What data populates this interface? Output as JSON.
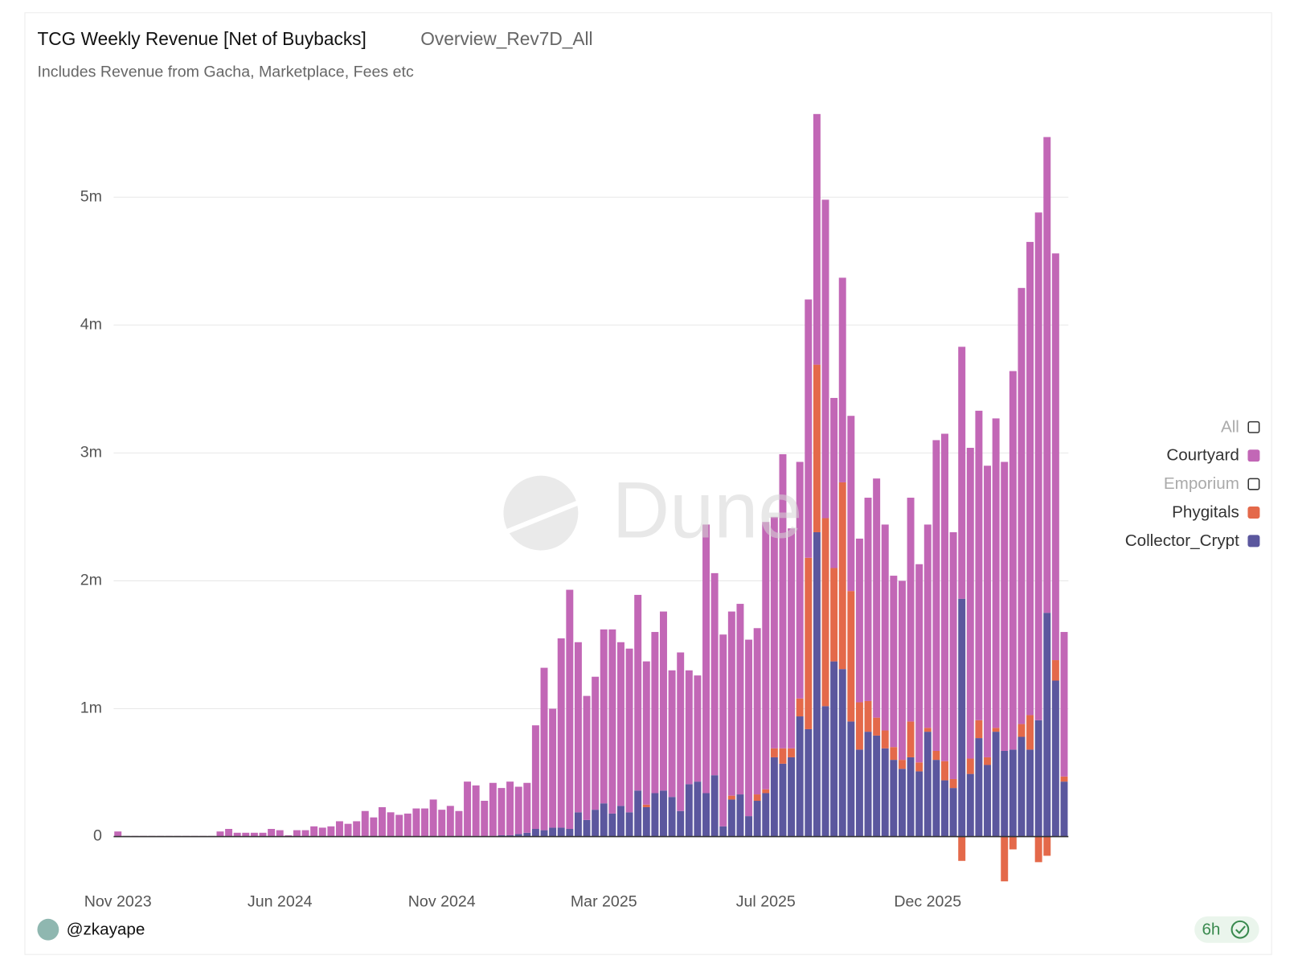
{
  "chart_data": {
    "type": "stacked_bar",
    "title": "TCG Weekly Revenue [Net of Buybacks]",
    "query_name": "Overview_Rev7D_All",
    "subtitle": "Includes Revenue from Gacha, Marketplace, Fees etc",
    "author": "@zkayape",
    "freshness": "6h",
    "watermark": "Dune",
    "categories": [
      "Nov 2023",
      null,
      null,
      null,
      null,
      null,
      null,
      null,
      null,
      null,
      null,
      null,
      null,
      null,
      null,
      null,
      null,
      null,
      null,
      "Jun 2024",
      null,
      null,
      null,
      null,
      null,
      null,
      null,
      null,
      null,
      null,
      null,
      null,
      null,
      null,
      null,
      null,
      null,
      null,
      "Nov 2024",
      null,
      null,
      null,
      null,
      null,
      null,
      null,
      null,
      null,
      null,
      null,
      null,
      null,
      null,
      null,
      null,
      null,
      null,
      "Mar 2025",
      null,
      null,
      null,
      null,
      null,
      null,
      null,
      null,
      null,
      null,
      null,
      null,
      null,
      null,
      null,
      null,
      null,
      null,
      "Jul 2025",
      null,
      null,
      null,
      null,
      null,
      null,
      null,
      null,
      null,
      null,
      null,
      null,
      null,
      null,
      null,
      null,
      null,
      null,
      "Dec 2025",
      null,
      null,
      null,
      null,
      null,
      null,
      null,
      null,
      null,
      null,
      null,
      null,
      null,
      null,
      null,
      null
    ],
    "series": [
      {
        "name": "All",
        "visible": false
      },
      {
        "name": "Courtyard",
        "color": "#c267b6",
        "visible": true,
        "values": [
          0.04,
          0.005,
          0.005,
          0.005,
          0.005,
          0.005,
          0.005,
          0.005,
          0.005,
          0.005,
          0.005,
          0.005,
          0.04,
          0.06,
          0.03,
          0.03,
          0.03,
          0.03,
          0.06,
          0.05,
          0.01,
          0.05,
          0.05,
          0.08,
          0.07,
          0.08,
          0.12,
          0.1,
          0.12,
          0.2,
          0.15,
          0.23,
          0.19,
          0.17,
          0.18,
          0.22,
          0.22,
          0.29,
          0.21,
          0.24,
          0.2,
          0.43,
          0.395,
          0.28,
          0.415,
          0.37,
          0.42,
          0.37,
          0.39,
          0.81,
          1.27,
          0.93,
          1.48,
          1.87,
          1.33,
          0.97,
          1.04,
          1.36,
          1.44,
          1.28,
          1.28,
          1.53,
          1.12,
          1.26,
          1.4,
          0.99,
          1.24,
          0.89,
          0.83,
          2.1,
          1.58,
          1.5,
          1.44,
          1.49,
          1.38,
          1.3,
          2.09,
          1.81,
          2.3,
          1.72,
          1.85,
          2.02,
          1.96,
          2.49,
          1.33,
          1.6,
          1.37,
          1.28,
          1.59,
          1.87,
          1.61,
          1.34,
          1.4,
          1.75,
          1.55,
          1.59,
          2.43,
          2.56,
          1.93,
          1.97,
          2.43,
          2.42,
          2.28,
          2.42,
          2.26,
          2.96,
          3.41,
          3.7,
          3.97,
          3.72,
          3.18,
          1.13
        ]
      },
      {
        "name": "Emporium",
        "visible": false
      },
      {
        "name": "Phygitals",
        "color": "#e4694a",
        "visible": true,
        "values": [
          0,
          0,
          0,
          0,
          0,
          0,
          0,
          0,
          0,
          0,
          0,
          0,
          0,
          0,
          0,
          0,
          0,
          0,
          0,
          0,
          0,
          0,
          0,
          0,
          0,
          0,
          0,
          0,
          0,
          0,
          0,
          0,
          0,
          0,
          0,
          0,
          0,
          0,
          0,
          0,
          0,
          0,
          0,
          0,
          0,
          0,
          0,
          0,
          0,
          0,
          0,
          0,
          0,
          0,
          0,
          0,
          0,
          0,
          0,
          0,
          0,
          0,
          0.02,
          0,
          0,
          0,
          0,
          0,
          0,
          0,
          0,
          0,
          0.03,
          0,
          0,
          0.05,
          0.03,
          0.07,
          0.12,
          0.07,
          0.14,
          1.34,
          1.31,
          1.47,
          0.73,
          1.46,
          1.02,
          0.37,
          0.24,
          0.14,
          0.14,
          0.1,
          0.07,
          0.28,
          0.07,
          0.03,
          0.07,
          0.15,
          0.07,
          -0.19,
          0.12,
          0.14,
          0.06,
          0.03,
          -0.35,
          -0.1,
          0.1,
          0.27,
          -0.2,
          -0.15,
          0.16,
          0.04
        ]
      },
      {
        "name": "Collector_Crypt",
        "color": "#5b579e",
        "visible": true,
        "values": [
          0,
          0,
          0,
          0,
          0,
          0,
          0,
          0,
          0,
          0,
          0,
          0,
          0,
          0,
          0,
          0,
          0,
          0,
          0,
          0,
          0,
          0,
          0,
          0,
          0,
          0,
          0,
          0,
          0,
          0,
          0,
          0,
          0,
          0,
          0,
          0,
          0,
          0,
          0,
          0,
          0,
          0,
          0.005,
          0,
          0.005,
          0.01,
          0.01,
          0.02,
          0.03,
          0.06,
          0.05,
          0.07,
          0.07,
          0.06,
          0.19,
          0.13,
          0.21,
          0.26,
          0.18,
          0.24,
          0.19,
          0.36,
          0.23,
          0.34,
          0.36,
          0.31,
          0.2,
          0.41,
          0.43,
          0.34,
          0.48,
          0.08,
          0.29,
          0.33,
          0.16,
          0.28,
          0.34,
          0.62,
          0.57,
          0.62,
          0.94,
          0.84,
          2.38,
          1.02,
          1.37,
          1.31,
          0.9,
          0.68,
          0.82,
          0.79,
          0.69,
          0.6,
          0.53,
          0.62,
          0.51,
          0.82,
          0.6,
          0.44,
          0.38,
          1.86,
          0.49,
          0.77,
          0.56,
          0.82,
          0.67,
          0.68,
          0.78,
          0.68,
          0.91,
          1.75,
          1.22,
          0.43
        ]
      }
    ],
    "ylim": [
      -0.5,
      5.8
    ],
    "yticks": [
      0,
      {
        "value": 1,
        "label": "1m"
      },
      {
        "value": 2,
        "label": "2m"
      },
      {
        "value": 3,
        "label": "3m"
      },
      {
        "value": 4,
        "label": "4m"
      },
      {
        "value": 5,
        "label": "5m"
      }
    ],
    "grid": true,
    "legend": "right"
  }
}
